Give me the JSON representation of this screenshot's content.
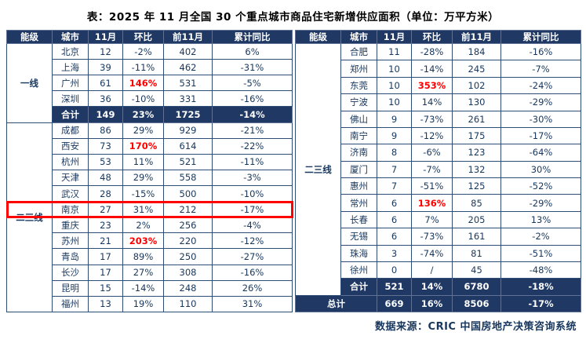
{
  "chart_data": {
    "type": "table",
    "title": "表：2025 年 11 月全国 30 个重点城市商品住宅新增供应面积（单位：万平方米）",
    "source": "数据来源：CRIC 中国房地产决策咨询系统",
    "columns": [
      "能级",
      "城市",
      "11月",
      "环比",
      "前11月",
      "累计同比"
    ],
    "left_table": {
      "groups": [
        {
          "tier": "一线",
          "rows": [
            {
              "city": "北京",
              "nov": "12",
              "mom": "-2%",
              "prev11": "402",
              "yoy": "6%"
            },
            {
              "city": "上海",
              "nov": "39",
              "mom": "-11%",
              "prev11": "462",
              "yoy": "-31%"
            },
            {
              "city": "广州",
              "nov": "61",
              "mom": "146%",
              "mom_red": true,
              "prev11": "531",
              "yoy": "-5%"
            },
            {
              "city": "深圳",
              "nov": "36",
              "mom": "-10%",
              "prev11": "331",
              "yoy": "-16%"
            }
          ],
          "total": {
            "label": "合计",
            "nov": "149",
            "mom": "23%",
            "prev11": "1725",
            "yoy": "-14%"
          }
        },
        {
          "tier": "二三线",
          "rows": [
            {
              "city": "成都",
              "nov": "86",
              "mom": "29%",
              "prev11": "929",
              "yoy": "-21%"
            },
            {
              "city": "西安",
              "nov": "73",
              "mom": "170%",
              "mom_red": true,
              "prev11": "614",
              "yoy": "-22%"
            },
            {
              "city": "杭州",
              "nov": "53",
              "mom": "11%",
              "prev11": "521",
              "yoy": "-11%"
            },
            {
              "city": "天津",
              "nov": "48",
              "mom": "29%",
              "prev11": "558",
              "yoy": "-3%"
            },
            {
              "city": "武汉",
              "nov": "28",
              "mom": "-15%",
              "prev11": "500",
              "yoy": "-10%"
            },
            {
              "city": "南京",
              "nov": "27",
              "mom": "31%",
              "prev11": "212",
              "yoy": "-17%",
              "highlight": true
            },
            {
              "city": "重庆",
              "nov": "23",
              "mom": "2%",
              "prev11": "256",
              "yoy": "-4%"
            },
            {
              "city": "苏州",
              "nov": "21",
              "mom": "203%",
              "mom_red": true,
              "prev11": "220",
              "yoy": "-12%"
            },
            {
              "city": "青岛",
              "nov": "17",
              "mom": "89%",
              "prev11": "250",
              "yoy": "-27%"
            },
            {
              "city": "长沙",
              "nov": "17",
              "mom": "27%",
              "prev11": "308",
              "yoy": "-16%"
            },
            {
              "city": "昆明",
              "nov": "15",
              "mom": "-14%",
              "prev11": "248",
              "yoy": "26%"
            },
            {
              "city": "福州",
              "nov": "13",
              "mom": "19%",
              "prev11": "110",
              "yoy": "31%"
            }
          ],
          "total": null
        }
      ]
    },
    "right_table": {
      "tier": "二三线",
      "rows": [
        {
          "city": "合肥",
          "nov": "11",
          "mom": "-28%",
          "prev11": "184",
          "yoy": "-16%"
        },
        {
          "city": "郑州",
          "nov": "10",
          "mom": "-14%",
          "prev11": "245",
          "yoy": "-7%"
        },
        {
          "city": "东莞",
          "nov": "10",
          "mom": "353%",
          "mom_red": true,
          "prev11": "102",
          "yoy": "-24%"
        },
        {
          "city": "宁波",
          "nov": "10",
          "mom": "14%",
          "prev11": "130",
          "yoy": "-29%"
        },
        {
          "city": "佛山",
          "nov": "9",
          "mom": "-73%",
          "prev11": "261",
          "yoy": "-30%"
        },
        {
          "city": "南宁",
          "nov": "9",
          "mom": "-12%",
          "prev11": "175",
          "yoy": "-17%"
        },
        {
          "city": "济南",
          "nov": "8",
          "mom": "-6%",
          "prev11": "123",
          "yoy": "-64%"
        },
        {
          "city": "厦门",
          "nov": "7",
          "mom": "-7%",
          "prev11": "132",
          "yoy": "30%"
        },
        {
          "city": "惠州",
          "nov": "7",
          "mom": "-51%",
          "prev11": "125",
          "yoy": "-52%"
        },
        {
          "city": "常州",
          "nov": "6",
          "mom": "136%",
          "mom_red": true,
          "prev11": "85",
          "yoy": "-29%"
        },
        {
          "city": "长春",
          "nov": "6",
          "mom": "7%",
          "prev11": "205",
          "yoy": "13%"
        },
        {
          "city": "无锡",
          "nov": "6",
          "mom": "-73%",
          "prev11": "161",
          "yoy": "-2%"
        },
        {
          "city": "珠海",
          "nov": "3",
          "mom": "-74%",
          "prev11": "81",
          "yoy": "-51%"
        },
        {
          "city": "徐州",
          "nov": "0",
          "mom": "/",
          "prev11": "45",
          "yoy": "-48%"
        }
      ],
      "subtotal": {
        "label": "合计",
        "nov": "521",
        "mom": "14%",
        "prev11": "6780",
        "yoy": "-18%"
      },
      "grand_total": {
        "label": "总计",
        "nov": "669",
        "mom": "16%",
        "prev11": "8506",
        "yoy": "-17%"
      }
    },
    "colors": {
      "header_bg": "#1F3864",
      "body_text": "#17375E",
      "red_accent": "#FF0000",
      "highlight_box": "#FF0000"
    }
  }
}
